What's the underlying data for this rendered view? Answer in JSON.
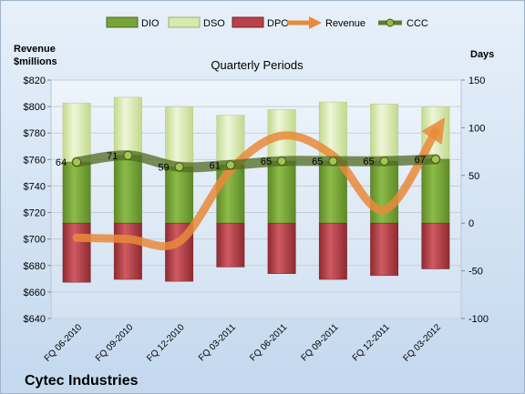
{
  "chart_data": {
    "type": "bar",
    "title": "Quarterly Periods",
    "company": "Cytec Industries",
    "left_axis_label": [
      "Revenue",
      "$millions"
    ],
    "right_axis_label": "Days",
    "categories": [
      "FQ 06-2010",
      "FQ 09-2010",
      "FQ 12-2010",
      "FQ 03-2011",
      "FQ 06-2011",
      "FQ 09-2011",
      "FQ 12-2011",
      "FQ 03-2012"
    ],
    "left_axis": {
      "min": 640,
      "max": 820,
      "step": 20,
      "tick_labels": [
        "$640",
        "$660",
        "$680",
        "$700",
        "$720",
        "$740",
        "$760",
        "$780",
        "$800",
        "$820"
      ]
    },
    "right_axis": {
      "min": -100,
      "max": 150,
      "step": 50,
      "tick_labels": [
        "-100",
        "-50",
        "0",
        "50",
        "100",
        "150"
      ]
    },
    "series": [
      {
        "name": "DIO",
        "axis": "right",
        "kind": "stacked-bar",
        "color": "#77a33a",
        "values": [
          64,
          71,
          59,
          61,
          65,
          65,
          65,
          67
        ]
      },
      {
        "name": "DSO",
        "axis": "right",
        "kind": "stacked-bar",
        "color": "#d7e9ae",
        "values": [
          62,
          61,
          63,
          52,
          54,
          62,
          60,
          55
        ]
      },
      {
        "name": "DPO",
        "axis": "right",
        "kind": "negative-bar",
        "color": "#b8434a",
        "values": [
          -62,
          -59,
          -61,
          -46,
          -53,
          -59,
          -55,
          -48
        ]
      },
      {
        "name": "Revenue",
        "axis": "left",
        "kind": "line",
        "color": "#e98a3a",
        "values": [
          701,
          700,
          698,
          752,
          778,
          763,
          722,
          781
        ]
      },
      {
        "name": "CCC",
        "axis": "right",
        "kind": "line",
        "color": "#5e7d2a",
        "values": [
          64,
          71,
          59,
          61,
          65,
          65,
          65,
          67
        ]
      }
    ],
    "data_labels": [
      "64",
      "71",
      "59",
      "61",
      "65",
      "65",
      "65",
      "67"
    ],
    "grid": true,
    "legend_position": "top"
  }
}
